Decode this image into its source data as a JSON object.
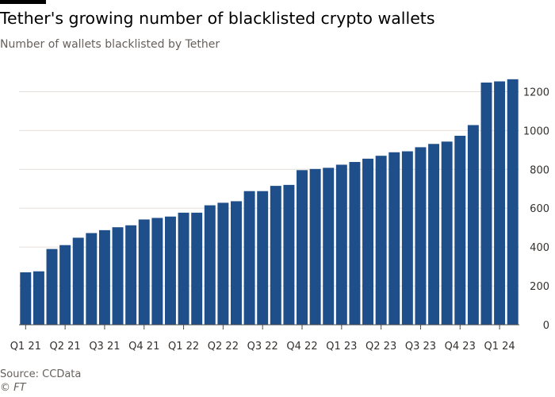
{
  "title": "Tether's growing number of blacklisted crypto wallets",
  "subtitle": "Number of wallets blacklisted by Tether",
  "source": "Source: CCData",
  "credit": "© FT",
  "colors": {
    "bar": "#1f4f8b",
    "grid": "#e4dfda",
    "axis": "#4d4a47",
    "text": "#33302e"
  },
  "chart_data": {
    "type": "bar",
    "title": "Tether's growing number of blacklisted crypto wallets",
    "subtitle": "Number of wallets blacklisted by Tether",
    "ylim": [
      0,
      1300
    ],
    "y_axis_position": "right",
    "y_ticks": [
      0,
      200,
      400,
      600,
      800,
      1000,
      1200
    ],
    "grid": "horizontal",
    "x_tick_labels": [
      "Q1 21",
      "Q2 21",
      "Q3 21",
      "Q4 21",
      "Q1 22",
      "Q2 22",
      "Q3 22",
      "Q4 22",
      "Q1 23",
      "Q2 23",
      "Q3 23",
      "Q4 23",
      "Q1 24"
    ],
    "bars_per_quarter": 3,
    "values": [
      270,
      275,
      390,
      410,
      448,
      472,
      487,
      502,
      512,
      542,
      550,
      557,
      577,
      577,
      615,
      628,
      636,
      688,
      688,
      715,
      720,
      796,
      802,
      808,
      824,
      838,
      855,
      870,
      888,
      893,
      914,
      931,
      943,
      973,
      1028,
      1247,
      1253,
      1264
    ]
  }
}
